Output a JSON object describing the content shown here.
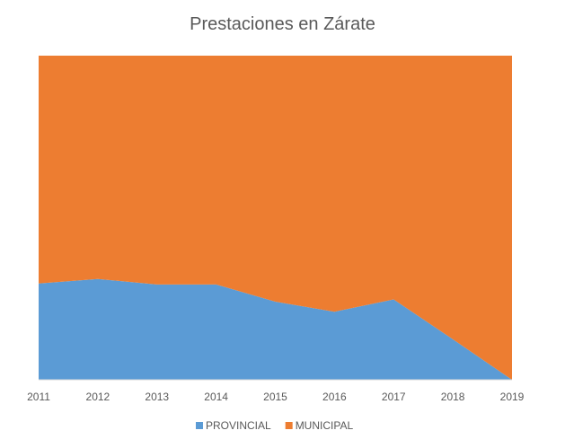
{
  "chart_data": {
    "type": "area",
    "stacked": "percent",
    "title": "Prestaciones en Zárate",
    "xlabel": "",
    "ylabel": "",
    "categories": [
      "2011",
      "2012",
      "2013",
      "2014",
      "2015",
      "2016",
      "2017",
      "2018",
      "2019"
    ],
    "ylim": [
      0,
      100
    ],
    "grid": false,
    "legend_position": "bottom",
    "series": [
      {
        "name": "PROVINCIAL",
        "color": "#5B9BD5",
        "values": [
          29.7,
          31.1,
          29.4,
          29.4,
          24.1,
          21.0,
          24.8,
          12.5,
          0
        ]
      },
      {
        "name": "MUNICIPAL",
        "color": "#ED7D31",
        "values": [
          70.3,
          68.9,
          70.6,
          70.6,
          75.9,
          79.0,
          75.2,
          87.5,
          100
        ]
      }
    ]
  }
}
